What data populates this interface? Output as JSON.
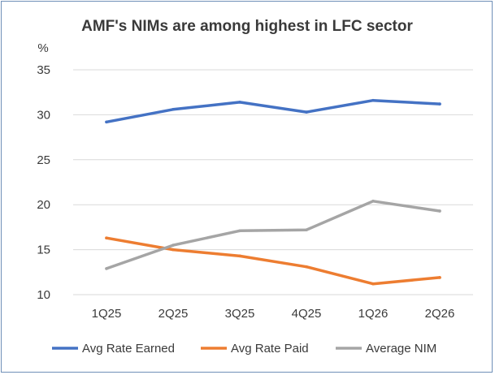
{
  "chart_data": {
    "type": "line",
    "title": "AMF's NIMs are among highest in LFC sector",
    "ylabel": "%",
    "xlabel": "",
    "categories": [
      "1Q25",
      "2Q25",
      "3Q25",
      "4Q25",
      "1Q26",
      "2Q26"
    ],
    "ylim": [
      10,
      35
    ],
    "yticks": [
      "10",
      "15",
      "20",
      "25",
      "30",
      "35"
    ],
    "grid": true,
    "legend_position": "bottom",
    "series": [
      {
        "name": "Avg Rate Earned",
        "color": "#4472c4",
        "values": [
          29.2,
          30.6,
          31.4,
          30.3,
          31.6,
          31.2
        ]
      },
      {
        "name": "Avg Rate Paid",
        "color": "#ed7d31",
        "values": [
          16.3,
          15.0,
          14.3,
          13.1,
          11.2,
          11.9
        ]
      },
      {
        "name": "Average NIM",
        "color": "#a5a5a5",
        "values": [
          12.9,
          15.5,
          17.1,
          17.2,
          20.4,
          19.3
        ]
      }
    ]
  }
}
